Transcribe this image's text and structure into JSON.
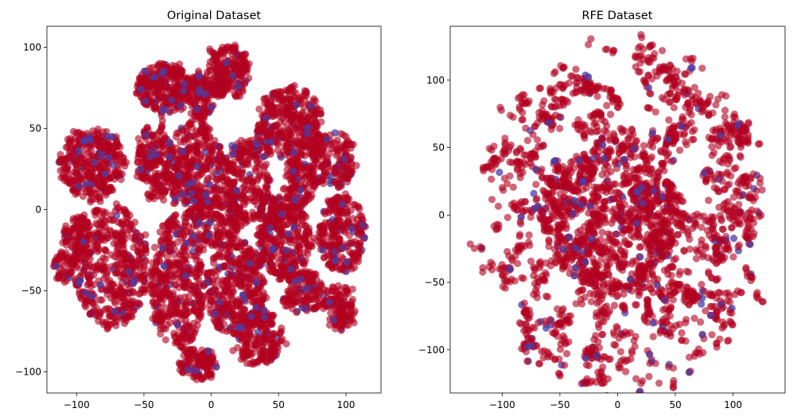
{
  "colors": {
    "majority": "#b2001f",
    "minority": "#4a3fa6",
    "axes": "#000000"
  },
  "chart_data": [
    {
      "type": "scatter",
      "title": "Original Dataset",
      "xlabel": "",
      "ylabel": "",
      "xlim": [
        -122,
        126
      ],
      "ylim": [
        -113,
        113
      ],
      "xticks": [
        -100,
        -50,
        0,
        50,
        100
      ],
      "yticks": [
        -100,
        -50,
        0,
        50,
        100
      ],
      "grid": false,
      "legend": "none",
      "series": [
        {
          "color_key": "majority",
          "clusters": [
            {
              "cx": -35,
              "cy": 75,
              "rx": 20,
              "ry": 15,
              "n": 210
            },
            {
              "cx": 12,
              "cy": 85,
              "rx": 15,
              "ry": 17,
              "n": 160
            },
            {
              "cx": -8,
              "cy": 70,
              "rx": 10,
              "ry": 14,
              "n": 90
            },
            {
              "cx": 58,
              "cy": 52,
              "rx": 25,
              "ry": 24,
              "n": 260
            },
            {
              "cx": -88,
              "cy": 28,
              "rx": 25,
              "ry": 22,
              "n": 260
            },
            {
              "cx": -42,
              "cy": 30,
              "rx": 13,
              "ry": 24,
              "n": 140
            },
            {
              "cx": -12,
              "cy": 25,
              "rx": 21,
              "ry": 30,
              "n": 270
            },
            {
              "cx": 25,
              "cy": 18,
              "rx": 18,
              "ry": 26,
              "n": 180
            },
            {
              "cx": 90,
              "cy": 30,
              "rx": 18,
              "ry": 18,
              "n": 130
            },
            {
              "cx": 65,
              "cy": 15,
              "rx": 12,
              "ry": 14,
              "n": 80
            },
            {
              "cx": -75,
              "cy": -35,
              "rx": 28,
              "ry": 38,
              "n": 330
            },
            {
              "cx": -25,
              "cy": -45,
              "rx": 20,
              "ry": 42,
              "n": 300
            },
            {
              "cx": 5,
              "cy": -5,
              "rx": 18,
              "ry": 18,
              "n": 130
            },
            {
              "cx": 18,
              "cy": -48,
              "rx": 22,
              "ry": 30,
              "n": 260
            },
            {
              "cx": 55,
              "cy": -20,
              "rx": 20,
              "ry": 24,
              "n": 200
            },
            {
              "cx": 97,
              "cy": -15,
              "rx": 17,
              "ry": 24,
              "n": 180
            },
            {
              "cx": 35,
              "cy": -78,
              "rx": 18,
              "ry": 18,
              "n": 140
            },
            {
              "cx": 68,
              "cy": -50,
              "rx": 16,
              "ry": 14,
              "n": 100
            },
            {
              "cx": 95,
              "cy": -60,
              "rx": 12,
              "ry": 14,
              "n": 90
            },
            {
              "cx": -10,
              "cy": -95,
              "rx": 15,
              "ry": 10,
              "n": 90
            },
            {
              "cx": -100,
              "cy": -15,
              "rx": 10,
              "ry": 12,
              "n": 70
            },
            {
              "cx": -110,
              "cy": -35,
              "rx": 8,
              "ry": 10,
              "n": 40
            },
            {
              "cx": 45,
              "cy": 0,
              "rx": 10,
              "ry": 10,
              "n": 50
            }
          ]
        },
        {
          "color_key": "minority",
          "fraction": 0.09
        }
      ]
    },
    {
      "type": "scatter",
      "title": "RFE Dataset",
      "xlabel": "",
      "ylabel": "",
      "xlim": [
        -145,
        145
      ],
      "ylim": [
        -132,
        140
      ],
      "xticks": [
        -100,
        -50,
        0,
        50,
        100
      ],
      "yticks": [
        -100,
        -50,
        0,
        50,
        100
      ],
      "grid": false,
      "legend": "none",
      "series": [
        {
          "color_key": "majority",
          "shape": "disk",
          "center": [
            0,
            0
          ],
          "radius": 128,
          "dense_core": {
            "cx": -5,
            "cy": 0,
            "rx": 60,
            "ry": 55,
            "n": 500
          },
          "outer_blobs": 260
        },
        {
          "color_key": "minority",
          "fraction": 0.07
        }
      ]
    }
  ]
}
